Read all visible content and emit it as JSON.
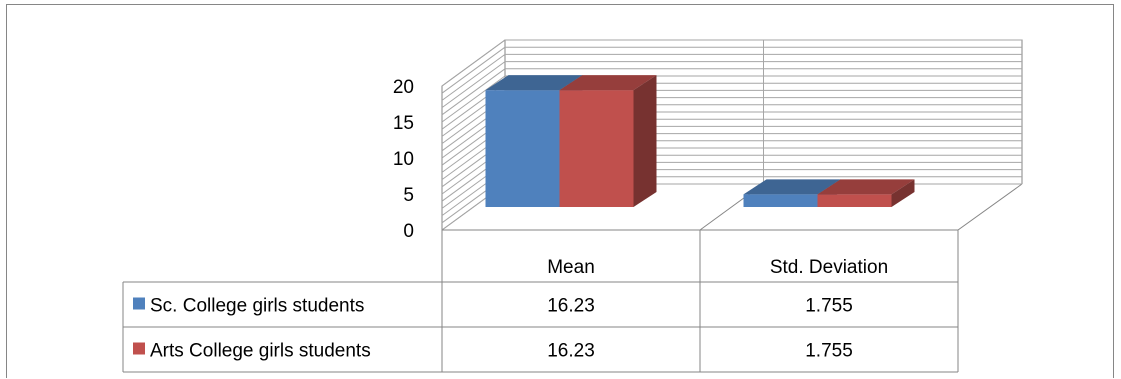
{
  "chart_data": {
    "type": "bar",
    "style": "3d-clustered-column-with-data-table",
    "title": "",
    "xlabel": "",
    "ylabel": "",
    "categories": [
      "Mean",
      "Std. Deviation"
    ],
    "series": [
      {
        "name": "Sc. College girls students",
        "values": [
          16.23,
          1.755
        ],
        "color": "#4F81BD",
        "value_labels": [
          "16.23",
          "1.755"
        ]
      },
      {
        "name": "Arts College girls students",
        "values": [
          16.23,
          1.755
        ],
        "color": "#C0504D",
        "value_labels": [
          "16.23",
          "1.755"
        ]
      }
    ],
    "ylim": [
      0,
      20
    ],
    "yticks": [
      "0",
      "5",
      "10",
      "15",
      "20"
    ],
    "grid": true,
    "legend": "data-table-left"
  }
}
